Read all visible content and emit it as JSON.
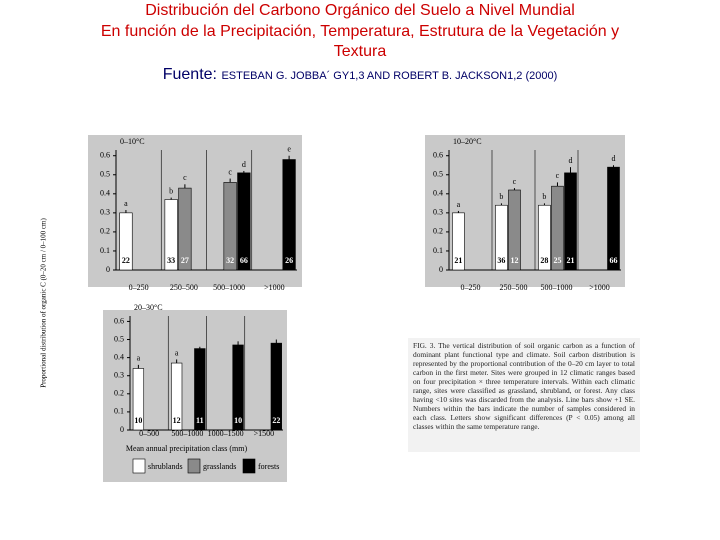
{
  "slide": {
    "title_lines": [
      "Distribución del Carbono Orgánico del Suelo a Nivel Mundial",
      "En función de la Precipitación, Temperatura, Estrutura de la Vegetación y",
      "Textura"
    ],
    "source_label": "Fuente:",
    "source": "ESTEBAN G. JOBBA´ GY1,3 AND ROBERT B. JACKSON1,2 (2000)"
  },
  "y_axis_label": "Proportional distribution of organic C (0–20 cm / 0–100 cm)",
  "caption": "FIG. 3. The vertical distribution of soil organic carbon as a function of dominant plant functional type and climate. Soil carbon distribution is represented by the proportional contribution of the 0–20 cm layer to total carbon in the first meter. Sites were grouped in 12 climatic ranges based on four precipitation × three temperature intervals. Within each climatic range, sites were classified as grassland, shrubland, or forest. Any class having <10 sites was discarded from the analysis. Line bars show +1 SE. Numbers within the bars indicate the number of samples considered in each class. Letters show significant differences (P < 0.05) among all classes within the same temperature range.",
  "chart_data": [
    {
      "type": "bar",
      "title": "0–10°C",
      "categories": [
        "0–250",
        "250–500",
        "500–1000",
        ">1000"
      ],
      "ylim": [
        0,
        0.63
      ],
      "yticks": [
        0,
        0.1,
        0.2,
        0.3,
        0.4,
        0.5,
        0.6
      ],
      "series": [
        {
          "color": "#ffffff",
          "values": [
            0.3,
            0.37,
            null,
            null
          ],
          "errors": [
            0.015,
            0.01,
            null,
            null
          ],
          "n": [
            22,
            33,
            null,
            null
          ],
          "letters": [
            "a",
            "b",
            null,
            null
          ]
        },
        {
          "color": "#8a8a8a",
          "values": [
            null,
            0.43,
            0.46,
            null
          ],
          "errors": [
            null,
            0.02,
            0.02,
            null
          ],
          "n": [
            null,
            27,
            32,
            null
          ],
          "letters": [
            null,
            "c",
            "c",
            null
          ]
        },
        {
          "color": "#000000",
          "values": [
            null,
            null,
            0.51,
            0.58
          ],
          "errors": [
            null,
            null,
            0.01,
            0.02
          ],
          "n": [
            null,
            null,
            66,
            26
          ],
          "letters": [
            null,
            null,
            "d",
            "e"
          ]
        }
      ]
    },
    {
      "type": "bar",
      "title": "10–20°C",
      "categories": [
        "0–250",
        "250–500",
        "500–1000",
        ">1000"
      ],
      "ylim": [
        0,
        0.63
      ],
      "yticks": [
        0,
        0.1,
        0.2,
        0.3,
        0.4,
        0.5,
        0.6
      ],
      "series": [
        {
          "color": "#ffffff",
          "values": [
            0.3,
            0.34,
            0.34,
            null
          ],
          "errors": [
            0.01,
            0.01,
            0.01,
            null
          ],
          "n": [
            21,
            36,
            28,
            null
          ],
          "letters": [
            "a",
            "b",
            "b",
            null
          ]
        },
        {
          "color": "#8a8a8a",
          "values": [
            null,
            0.42,
            0.44,
            null
          ],
          "errors": [
            null,
            0.01,
            0.02,
            null
          ],
          "n": [
            null,
            12,
            25,
            null
          ],
          "letters": [
            null,
            "c",
            "c",
            null
          ]
        },
        {
          "color": "#000000",
          "values": [
            null,
            null,
            0.51,
            0.54
          ],
          "errors": [
            null,
            null,
            0.03,
            0.01
          ],
          "n": [
            null,
            null,
            21,
            66
          ],
          "letters": [
            null,
            null,
            "d",
            "d"
          ]
        }
      ]
    },
    {
      "type": "bar",
      "title": "20–30°C",
      "categories": [
        "0–500",
        "500–1000",
        "1000–1500",
        ">1500"
      ],
      "xlabel": "Mean annual precipitation class (mm)",
      "ylim": [
        0,
        0.63
      ],
      "yticks": [
        0,
        0.1,
        0.2,
        0.3,
        0.4,
        0.5,
        0.6
      ],
      "legend": true,
      "series": [
        {
          "name": "shrublands",
          "color": "#ffffff",
          "values": [
            0.34,
            0.37,
            null,
            null
          ],
          "errors": [
            0.02,
            0.02,
            null,
            null
          ],
          "n": [
            10,
            12,
            null,
            null
          ],
          "letters": [
            "a",
            "a",
            null,
            null
          ]
        },
        {
          "name": "grasslands",
          "color": "#8a8a8a",
          "values": [
            null,
            null,
            null,
            null
          ],
          "errors": [
            null,
            null,
            null,
            null
          ],
          "n": [
            null,
            null,
            null,
            null
          ],
          "letters": [
            null,
            null,
            null,
            null
          ]
        },
        {
          "name": "forests",
          "color": "#000000",
          "values": [
            null,
            0.45,
            0.47,
            0.48
          ],
          "errors": [
            null,
            0.01,
            0.02,
            0.02
          ],
          "n": [
            null,
            11,
            10,
            22
          ],
          "letters": [
            null,
            null,
            null,
            null
          ]
        }
      ]
    }
  ]
}
